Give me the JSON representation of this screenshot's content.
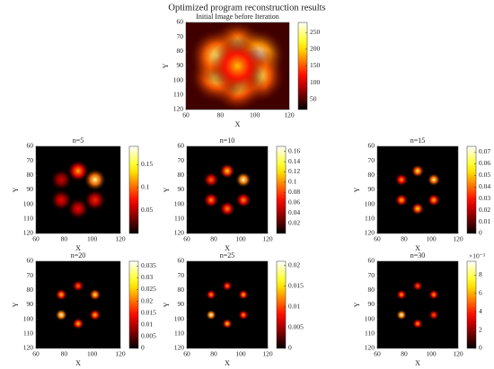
{
  "title": "Optimized program reconstruction results",
  "chart_data": [
    {
      "type": "heatmap",
      "title": "Initial Image before Iteration",
      "xlabel": "X",
      "ylabel": "Y",
      "xlim": [
        60,
        120
      ],
      "ylim": [
        60,
        120
      ],
      "y_reversed": true,
      "xticks": [
        60,
        80,
        100,
        120
      ],
      "yticks": [
        60,
        70,
        80,
        90,
        100,
        110,
        120
      ],
      "clim": [
        20,
        280
      ],
      "cticks": [
        50,
        100,
        150,
        200,
        250
      ],
      "background": 45,
      "spot_width": 8,
      "x": [
        90,
        102,
        102,
        90,
        78,
        78,
        90
      ],
      "y": [
        77,
        83,
        97,
        103,
        97,
        83,
        90
      ],
      "values": [
        250,
        275,
        240,
        235,
        240,
        245,
        190
      ]
    },
    {
      "type": "heatmap",
      "title": "n=5",
      "xlabel": "X",
      "ylabel": "Y",
      "xlim": [
        60,
        120
      ],
      "ylim": [
        60,
        120
      ],
      "y_reversed": true,
      "xticks": [
        60,
        80,
        100,
        120
      ],
      "yticks": [
        60,
        70,
        80,
        90,
        100,
        110,
        120
      ],
      "clim": [
        0,
        0.19
      ],
      "cticks": [
        0.05,
        0.1,
        0.15
      ],
      "background": 0,
      "spot_width": 4,
      "x": [
        90,
        102,
        102,
        90,
        78,
        78
      ],
      "y": [
        77,
        83,
        97,
        103,
        97,
        83
      ],
      "values": [
        0.12,
        0.17,
        0.08,
        0.07,
        0.07,
        0.06
      ]
    },
    {
      "type": "heatmap",
      "title": "n=10",
      "xlabel": "X",
      "ylabel": "Y",
      "xlim": [
        60,
        120
      ],
      "ylim": [
        60,
        120
      ],
      "y_reversed": true,
      "xticks": [
        60,
        80,
        100,
        120
      ],
      "yticks": [
        60,
        70,
        80,
        90,
        100,
        110,
        120
      ],
      "clim": [
        0,
        0.17
      ],
      "cticks": [
        0.02,
        0.04,
        0.06,
        0.08,
        0.1,
        0.12,
        0.14,
        0.16
      ],
      "background": 0,
      "spot_width": 3,
      "x": [
        90,
        102,
        102,
        90,
        78,
        78
      ],
      "y": [
        77,
        83,
        97,
        103,
        97,
        83
      ],
      "values": [
        0.12,
        0.16,
        0.1,
        0.1,
        0.1,
        0.09
      ]
    },
    {
      "type": "heatmap",
      "title": "n=15",
      "xlabel": "X",
      "ylabel": "Y",
      "xlim": [
        60,
        120
      ],
      "ylim": [
        60,
        120
      ],
      "y_reversed": true,
      "xticks": [
        60,
        80,
        100,
        120
      ],
      "yticks": [
        60,
        70,
        80,
        90,
        100,
        110,
        120
      ],
      "clim": [
        0,
        0.075
      ],
      "cticks": [
        0,
        0.01,
        0.02,
        0.03,
        0.04,
        0.05,
        0.06,
        0.07
      ],
      "background": 0,
      "spot_width": 2.5,
      "x": [
        90,
        102,
        102,
        90,
        78,
        78
      ],
      "y": [
        77,
        83,
        97,
        103,
        97,
        83
      ],
      "values": [
        0.06,
        0.065,
        0.05,
        0.055,
        0.05,
        0.045
      ]
    },
    {
      "type": "heatmap",
      "title": "n=20",
      "xlabel": "X",
      "ylabel": "Y",
      "xlim": [
        60,
        120
      ],
      "ylim": [
        60,
        120
      ],
      "y_reversed": true,
      "xticks": [
        60,
        80,
        100,
        120
      ],
      "yticks": [
        60,
        70,
        80,
        90,
        100,
        110,
        120
      ],
      "clim": [
        0,
        0.037
      ],
      "cticks": [
        0,
        0.005,
        0.01,
        0.015,
        0.02,
        0.025,
        0.03,
        0.035
      ],
      "background": 0,
      "spot_width": 2.2,
      "x": [
        90,
        102,
        102,
        90,
        78,
        78
      ],
      "y": [
        77,
        83,
        97,
        103,
        97,
        83
      ],
      "values": [
        0.02,
        0.03,
        0.025,
        0.025,
        0.035,
        0.025
      ]
    },
    {
      "type": "heatmap",
      "title": "n=25",
      "xlabel": "X",
      "ylabel": "Y",
      "xlim": [
        60,
        120
      ],
      "ylim": [
        60,
        120
      ],
      "y_reversed": true,
      "xticks": [
        60,
        80,
        100,
        120
      ],
      "yticks": [
        60,
        70,
        80,
        90,
        100,
        110,
        120
      ],
      "clim": [
        0,
        0.021
      ],
      "cticks": [
        0,
        0.005,
        0.01,
        0.015,
        0.02
      ],
      "background": 0,
      "spot_width": 2,
      "x": [
        90,
        102,
        102,
        90,
        78,
        78
      ],
      "y": [
        77,
        83,
        97,
        103,
        97,
        83
      ],
      "values": [
        0.012,
        0.014,
        0.013,
        0.015,
        0.02,
        0.013
      ]
    },
    {
      "type": "heatmap",
      "title": "n=30",
      "xlabel": "X",
      "ylabel": "Y",
      "xlim": [
        60,
        120
      ],
      "ylim": [
        60,
        120
      ],
      "y_reversed": true,
      "xticks": [
        60,
        80,
        100,
        120
      ],
      "yticks": [
        60,
        70,
        80,
        90,
        100,
        110,
        120
      ],
      "clim": [
        0,
        9.5
      ],
      "cticks": [
        0,
        2,
        4,
        6,
        8
      ],
      "colorbar_unit": "×10⁻³",
      "background": 0,
      "spot_width": 2,
      "x": [
        90,
        102,
        102,
        90,
        78,
        78
      ],
      "y": [
        77,
        83,
        97,
        103,
        97,
        83
      ],
      "values": [
        5,
        6,
        5,
        6,
        9,
        6
      ]
    }
  ]
}
